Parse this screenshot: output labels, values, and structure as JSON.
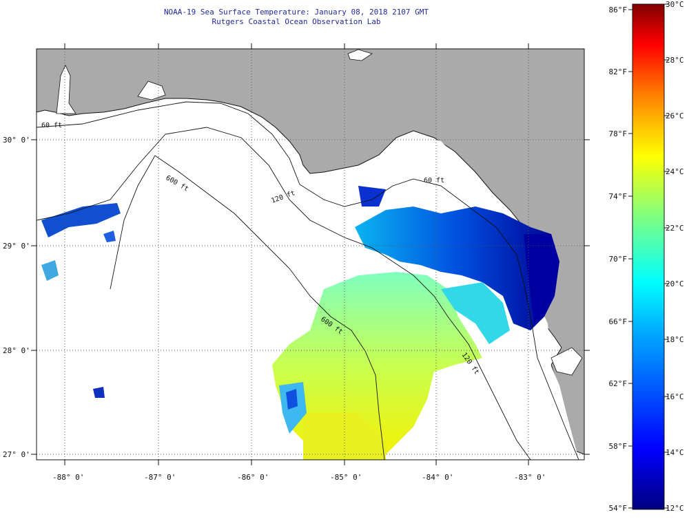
{
  "header": {
    "title": "NOAA-19 Sea Surface Temperature:  January 08, 2018 2107 GMT",
    "subtitle": "Rutgers Coastal Ocean Observation Lab"
  },
  "map": {
    "lon_labels": [
      "-88° 0'",
      "-87° 0'",
      "-86° 0'",
      "-85° 0'",
      "-84° 0'",
      "-83° 0'"
    ],
    "lat_labels": [
      "30° 0'",
      "29° 0'",
      "28° 0'",
      "27° 0'"
    ],
    "contour_labels": [
      "60 ft",
      "120 ft",
      "600 ft",
      "600 ft",
      "120 ft",
      "60 ft"
    ],
    "colors": {
      "land": "#aaaaaa",
      "ocean_missing": "#ffffff",
      "coast": "#111111"
    }
  },
  "colorbar": {
    "fahrenheit": [
      "86°F",
      "82°F",
      "78°F",
      "74°F",
      "70°F",
      "66°F",
      "62°F",
      "58°F",
      "54°F"
    ],
    "celsius": [
      "30°C",
      "28°C",
      "26°C",
      "24°C",
      "22°C",
      "20°C",
      "18°C",
      "16°C",
      "14°C",
      "12°C"
    ],
    "colors": [
      "#7f0000",
      "#ff0000",
      "#ff8000",
      "#ffff00",
      "#80ff80",
      "#00ffff",
      "#0080ff",
      "#0000ff",
      "#00007f"
    ]
  }
}
